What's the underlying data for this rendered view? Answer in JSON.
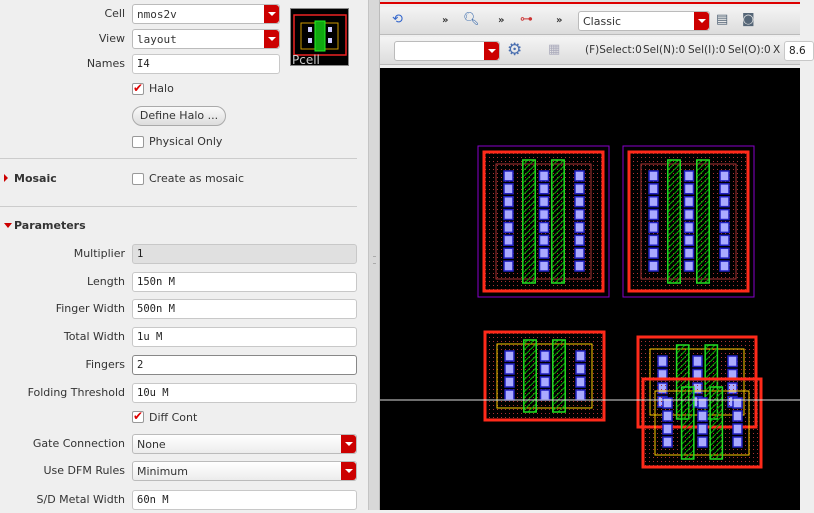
{
  "form": {
    "cell": {
      "label": "Cell",
      "value": "nmos2v"
    },
    "view": {
      "label": "View",
      "value": "layout"
    },
    "names": {
      "label": "Names",
      "value": "I4"
    },
    "halo": {
      "label": "Halo",
      "checked": true
    },
    "define_halo": "Define Halo ...",
    "physical_only": {
      "label": "Physical Only",
      "checked": false
    },
    "preview_label": "Pcell"
  },
  "mosaic": {
    "title": "Mosaic",
    "create": {
      "label": "Create as mosaic",
      "checked": false
    }
  },
  "parameters": {
    "title": "Parameters",
    "multiplier": {
      "label": "Multiplier",
      "value": "1"
    },
    "length": {
      "label": "Length",
      "value": "150n M"
    },
    "finger_width": {
      "label": "Finger Width",
      "value": "500n M"
    },
    "total_width": {
      "label": "Total Width",
      "value": "1u M"
    },
    "fingers": {
      "label": "Fingers",
      "value": "2"
    },
    "folding_threshold": {
      "label": "Folding Threshold",
      "value": "10u M"
    },
    "diff_cont": {
      "label": "Diff Cont",
      "checked": true
    },
    "gate_connection": {
      "label": "Gate Connection",
      "value": "None"
    },
    "dfm_rules": {
      "label": "Use DFM Rules",
      "value": "Minimum"
    },
    "sd_metal_width": {
      "label": "S/D Metal Width",
      "value": "60n M"
    }
  },
  "toolbar": {
    "more": "»",
    "workspace": "Classic",
    "filter_value": "",
    "status": {
      "fselect": "(F)Select:0",
      "seln": "Sel(N):0",
      "seli": "Sel(I):0",
      "selo": "Sel(O):0",
      "x_label": "X",
      "x_value": "8.6"
    }
  },
  "colors": {
    "accent": "#cc0000",
    "canvas": "#000000",
    "diffusion_outline": "#ff2a1a",
    "poly": "#22dd22",
    "contact": "#aaaaff",
    "metal": "#2020c0",
    "implant": "#ffcc00",
    "prboundary": "#8800cc"
  }
}
